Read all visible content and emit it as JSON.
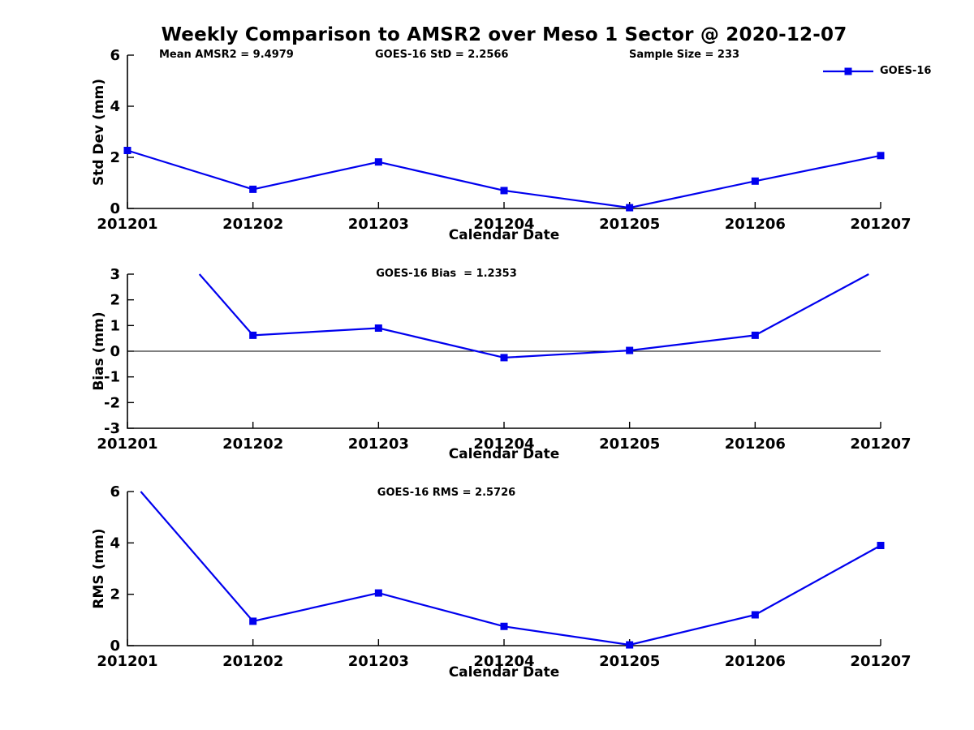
{
  "figure_title": "Weekly Comparison to AMSR2 over Meso 1 Sector @ 2020-12-07",
  "colors": {
    "line": "#0000EE",
    "axis": "#000000",
    "text": "#000000",
    "background": "#FFFFFF"
  },
  "chart_data": [
    {
      "type": "line",
      "x_label": "Calendar Date",
      "y_label": "Std Dev (mm)",
      "categories": [
        "201201",
        "201202",
        "201203",
        "201204",
        "201205",
        "201206",
        "201207"
      ],
      "series": [
        {
          "name": "GOES-16",
          "values": [
            2.27,
            0.75,
            1.82,
            0.7,
            0.03,
            1.07,
            2.07
          ]
        }
      ],
      "ylim": [
        0,
        6
      ],
      "yticks": [
        0,
        2,
        4,
        6
      ],
      "zero_line": false,
      "grid": false,
      "clip_to_ylim": true,
      "legend": {
        "label": "GOES-16",
        "position": "top-right-outside",
        "marker": "square"
      },
      "annotations": [
        "Mean AMSR2 = 9.4979",
        "GOES-16 StD = 2.2566",
        "Sample Size = 233"
      ]
    },
    {
      "type": "line",
      "subtitle": "GOES-16 Bias  = 1.2353",
      "x_label": "Calendar Date",
      "y_label": "Bias (mm)",
      "categories": [
        "201201",
        "201202",
        "201203",
        "201204",
        "201205",
        "201206",
        "201207"
      ],
      "series": [
        {
          "name": "GOES-16",
          "values": [
            6.2,
            0.62,
            0.9,
            -0.25,
            0.03,
            0.62,
            3.25
          ]
        }
      ],
      "ylim": [
        -3,
        3
      ],
      "yticks": [
        3,
        2,
        1,
        0,
        -1,
        -2,
        -3
      ],
      "zero_line": true,
      "grid": false,
      "clip_to_ylim": true
    },
    {
      "type": "line",
      "subtitle": "GOES-16 RMS = 2.5726",
      "x_label": "Calendar Date",
      "y_label": "RMS (mm)",
      "categories": [
        "201201",
        "201202",
        "201203",
        "201204",
        "201205",
        "201206",
        "201207"
      ],
      "series": [
        {
          "name": "GOES-16",
          "values": [
            6.6,
            0.95,
            2.05,
            0.75,
            0.03,
            1.2,
            3.9
          ]
        }
      ],
      "ylim": [
        0,
        6
      ],
      "yticks": [
        0,
        2,
        4,
        6
      ],
      "zero_line": false,
      "grid": false,
      "clip_to_ylim": true
    }
  ]
}
